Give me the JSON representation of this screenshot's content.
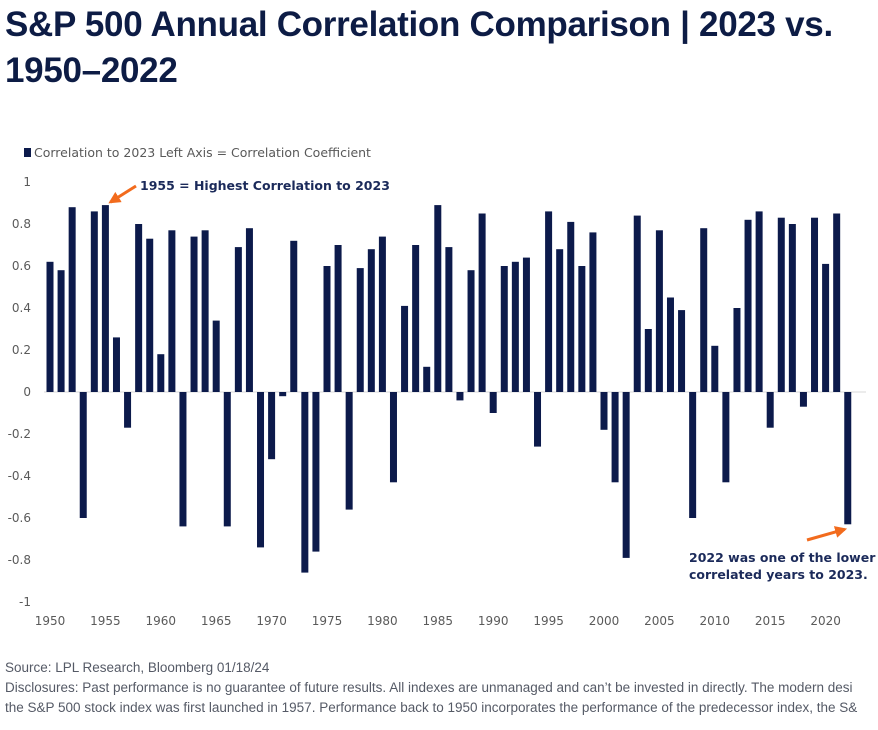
{
  "title": "S&P 500 Annual Correlation Comparison | 2023 vs. 1950–2022",
  "footer": {
    "source": "Source: LPL Research, Bloomberg 01/18/24",
    "disclosure_line1": "Disclosures: Past performance is no guarantee of future results. All indexes are unmanaged and can’t be invested in directly. The modern desi",
    "disclosure_line2": "the S&P 500 stock index was first launched in 1957. Performance back to 1950 incorporates the performance of the predecessor index, the S&"
  },
  "chart_data": {
    "type": "bar",
    "title": "S&P 500 Annual Correlation Comparison | 2023 vs. 1950–2022",
    "xlabel": "",
    "ylabel": "Correlation Coefficient",
    "legend": {
      "entries": [
        "Correlation to 2023"
      ],
      "note": "Left Axis = Correlation Coefficient",
      "placement": "top-left"
    },
    "ylim": [
      -1,
      1
    ],
    "yticks": [
      1,
      0.8,
      0.6,
      0.4,
      0.2,
      0,
      -0.2,
      -0.4,
      -0.6,
      -0.8,
      -1
    ],
    "ytick_labels": [
      "1",
      "0.8",
      "0.6",
      "0.4",
      "0.2",
      "0",
      "-0.2",
      "-0.4",
      "-0.6",
      "-0.8",
      "-1"
    ],
    "xticks": [
      1950,
      1955,
      1960,
      1965,
      1970,
      1975,
      1980,
      1985,
      1990,
      1995,
      2000,
      2005,
      2010,
      2015,
      2020
    ],
    "grid": false,
    "bar_color": "#0c1a4b",
    "annotation_color": "#f26b1d",
    "annotations": [
      {
        "text": "1955 = Highest Correlation to 2023",
        "target_year": 1955
      },
      {
        "text_lines": [
          "2022 was one of the lower",
          "correlated years to 2023."
        ],
        "target_year": 2022
      }
    ],
    "series": [
      {
        "name": "Correlation to 2023",
        "x": [
          1950,
          1951,
          1952,
          1953,
          1954,
          1955,
          1956,
          1957,
          1958,
          1959,
          1960,
          1961,
          1962,
          1963,
          1964,
          1965,
          1966,
          1967,
          1968,
          1969,
          1970,
          1971,
          1972,
          1973,
          1974,
          1975,
          1976,
          1977,
          1978,
          1979,
          1980,
          1981,
          1982,
          1983,
          1984,
          1985,
          1986,
          1987,
          1988,
          1989,
          1990,
          1991,
          1992,
          1993,
          1994,
          1995,
          1996,
          1997,
          1998,
          1999,
          2000,
          2001,
          2002,
          2003,
          2004,
          2005,
          2006,
          2007,
          2008,
          2009,
          2010,
          2011,
          2012,
          2013,
          2014,
          2015,
          2016,
          2017,
          2018,
          2019,
          2020,
          2021,
          2022
        ],
        "values": [
          0.62,
          0.58,
          0.88,
          -0.6,
          0.86,
          0.89,
          0.26,
          -0.17,
          0.8,
          0.73,
          0.18,
          0.77,
          -0.64,
          0.74,
          0.77,
          0.34,
          -0.64,
          0.69,
          0.78,
          -0.74,
          -0.32,
          -0.02,
          0.72,
          -0.86,
          -0.76,
          0.6,
          0.7,
          -0.56,
          0.59,
          0.68,
          0.74,
          -0.43,
          0.41,
          0.7,
          0.12,
          0.89,
          0.69,
          -0.04,
          0.58,
          0.85,
          -0.1,
          0.6,
          0.62,
          0.64,
          -0.26,
          0.86,
          0.68,
          0.81,
          0.6,
          0.76,
          -0.18,
          -0.43,
          -0.79,
          0.84,
          0.3,
          0.77,
          0.45,
          0.39,
          -0.6,
          0.78,
          0.22,
          -0.43,
          0.4,
          0.82,
          0.86,
          -0.17,
          0.83,
          0.8,
          -0.07,
          0.83,
          0.61,
          0.85,
          -0.63
        ]
      }
    ]
  }
}
